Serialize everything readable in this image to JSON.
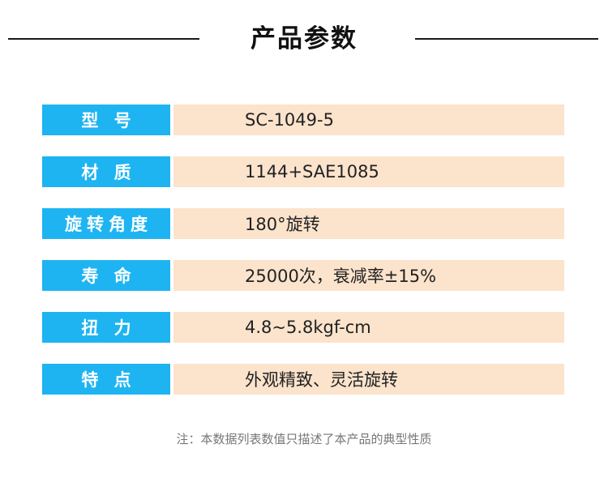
{
  "header": {
    "title": "产品参数"
  },
  "colors": {
    "label_bg": "#1eb4f2",
    "value_bg": "#fbe3cc",
    "title_text": "#111111",
    "note_text": "#777777"
  },
  "params": [
    {
      "label": "型 号",
      "value": "SC-1049-5"
    },
    {
      "label": "材 质",
      "value": "1144+SAE1085"
    },
    {
      "label": "旋转角度",
      "value": "180°旋转"
    },
    {
      "label": "寿 命",
      "value": "25000次，衰减率±15%"
    },
    {
      "label": "扭 力",
      "value": "4.8~5.8kgf-cm"
    },
    {
      "label": "特 点",
      "value": "外观精致、灵活旋转"
    }
  ],
  "footer": {
    "note": "注：本数据列表数值只描述了本产品的典型性质"
  }
}
